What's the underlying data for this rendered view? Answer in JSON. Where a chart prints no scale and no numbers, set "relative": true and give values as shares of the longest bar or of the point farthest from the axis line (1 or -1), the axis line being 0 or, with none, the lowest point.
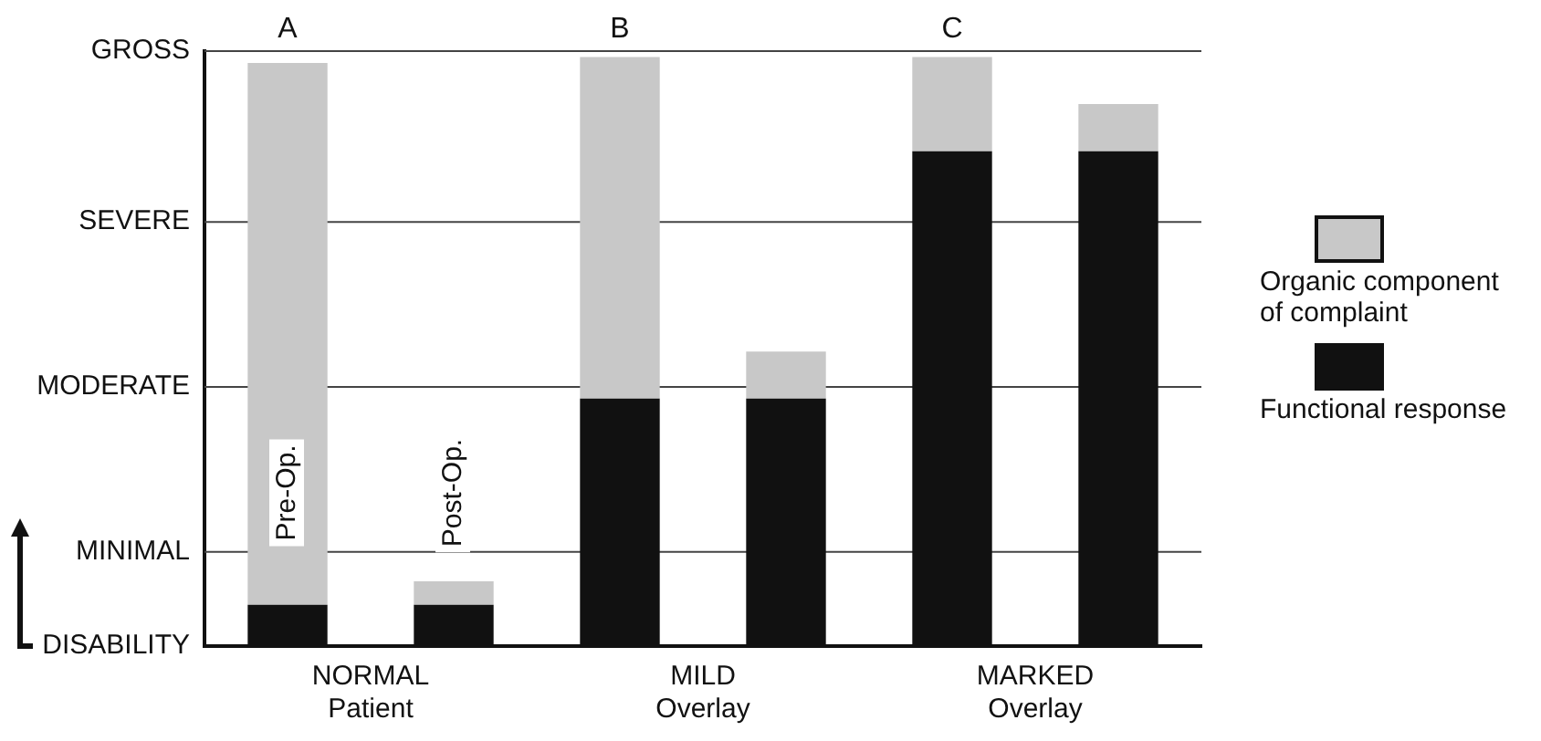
{
  "chart_data": {
    "type": "bar",
    "stacked": true,
    "relative": true,
    "categories": [
      "NORMAL Patient",
      null,
      "MILD Overlay",
      null,
      "MARKED Overlay",
      null
    ],
    "series": [
      {
        "name": "Functional response",
        "color": "#111111",
        "values": [
          0.07,
          0.07,
          0.42,
          0.42,
          0.84,
          0.84
        ]
      },
      {
        "name": "Organic component of complaint",
        "color": "#c8c8c8",
        "values": [
          0.92,
          0.04,
          0.58,
          0.08,
          0.16,
          0.08
        ]
      }
    ],
    "ylabel": "DISABILITY",
    "ref_lines": [
      {
        "axis": "y",
        "value": 0.16,
        "label": "MINIMAL"
      },
      {
        "axis": "y",
        "value": 0.44,
        "label": "MODERATE"
      },
      {
        "axis": "y",
        "value": 0.72,
        "label": "SEVERE"
      },
      {
        "axis": "y",
        "value": 1.01,
        "label": "GROSS"
      }
    ],
    "legend": "right",
    "annotations": [
      "A",
      "B",
      "C",
      "Pre-Op.",
      "Post-Op."
    ]
  }
}
